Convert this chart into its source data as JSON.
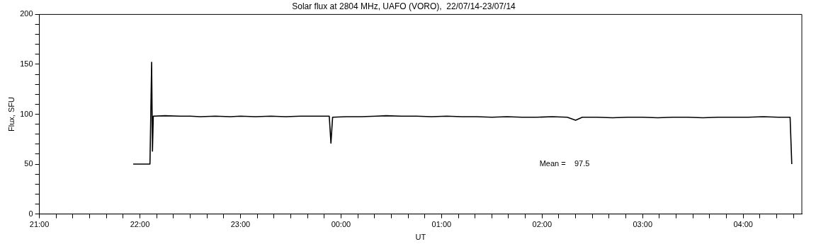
{
  "chart_data": {
    "type": "line",
    "title": "Solar flux at 2804 MHz, UAFO (VORO),  22/07/14-23/07/14",
    "xlabel": "UT",
    "ylabel": "Flux, SFU",
    "x": [
      "--07-22T21:56",
      "--07-22T22:06",
      "--07-22T22:06:30",
      "--07-22T22:07",
      "--07-22T22:07:30",
      "--07-22T22:08",
      "--07-22T22:15",
      "--07-22T22:24",
      "--07-22T22:30",
      "--07-22T22:36",
      "--07-22T22:45",
      "--07-22T22:54",
      "--07-22T23:00",
      "--07-22T23:09",
      "--07-22T23:18",
      "--07-22T23:27",
      "--07-22T23:36",
      "--07-22T23:45",
      "--07-22T23:53",
      "--07-22T23:54",
      "--07-22T23:55",
      "--07-23T00:03",
      "--07-23T00:12",
      "--07-23T00:21",
      "--07-23T00:27",
      "--07-23T00:36",
      "--07-23T00:45",
      "--07-23T00:54",
      "--07-23T01:03",
      "--07-23T01:12",
      "--07-23T01:21",
      "--07-23T01:30",
      "--07-23T01:39",
      "--07-23T01:48",
      "--07-23T01:57",
      "--07-23T02:06",
      "--07-23T02:15",
      "--07-23T02:20",
      "--07-23T02:24",
      "--07-23T02:33",
      "--07-23T02:42",
      "--07-23T02:51",
      "--07-23T03:00",
      "--07-23T03:09",
      "--07-23T03:18",
      "--07-23T03:27",
      "--07-23T03:36",
      "--07-23T03:45",
      "--07-23T03:54",
      "--07-23T04:03",
      "--07-23T04:12",
      "--07-23T04:21",
      "--07-23T04:28",
      "--07-23T04:29"
    ],
    "series": [
      {
        "color": "#000000",
        "values": [
          50,
          50,
          100,
          152,
          63,
          98,
          98.5,
          98,
          98,
          97.5,
          98,
          97.5,
          98,
          97.5,
          98,
          97.5,
          98,
          98,
          98,
          71,
          97,
          97.5,
          97.5,
          98,
          98.5,
          98,
          98,
          97.5,
          98,
          97.5,
          97.5,
          97,
          97.5,
          97,
          97,
          97.5,
          97,
          94,
          97,
          97,
          96.5,
          97,
          97,
          96.5,
          97,
          97,
          96.5,
          97,
          97,
          97,
          97.5,
          97,
          97,
          50
        ]
      }
    ],
    "xlim": [
      "--07-22T21:00",
      "--07-23T04:35"
    ],
    "ylim": [
      0,
      200
    ],
    "xticks": [
      {
        "value": "--07-22T21:00",
        "label": "21:00"
      },
      {
        "value": "--07-22T21:10",
        "label": null
      },
      {
        "value": "--07-22T21:20",
        "label": null
      },
      {
        "value": "--07-22T21:30",
        "label": null
      },
      {
        "value": "--07-22T21:40",
        "label": null
      },
      {
        "value": "--07-22T21:50",
        "label": null
      },
      {
        "value": "--07-22T22:00",
        "label": "22:00"
      },
      {
        "value": "--07-22T22:10",
        "label": null
      },
      {
        "value": "--07-22T22:20",
        "label": null
      },
      {
        "value": "--07-22T22:30",
        "label": null
      },
      {
        "value": "--07-22T22:40",
        "label": null
      },
      {
        "value": "--07-22T22:50",
        "label": null
      },
      {
        "value": "--07-22T23:00",
        "label": "23:00"
      },
      {
        "value": "--07-22T23:10",
        "label": null
      },
      {
        "value": "--07-22T23:20",
        "label": null
      },
      {
        "value": "--07-22T23:30",
        "label": null
      },
      {
        "value": "--07-22T23:40",
        "label": null
      },
      {
        "value": "--07-22T23:50",
        "label": null
      },
      {
        "value": "--07-23T00:00",
        "label": "00:00"
      },
      {
        "value": "--07-23T00:10",
        "label": null
      },
      {
        "value": "--07-23T00:20",
        "label": null
      },
      {
        "value": "--07-23T00:30",
        "label": null
      },
      {
        "value": "--07-23T00:40",
        "label": null
      },
      {
        "value": "--07-23T00:50",
        "label": null
      },
      {
        "value": "--07-23T01:00",
        "label": "01:00"
      },
      {
        "value": "--07-23T01:10",
        "label": null
      },
      {
        "value": "--07-23T01:20",
        "label": null
      },
      {
        "value": "--07-23T01:30",
        "label": null
      },
      {
        "value": "--07-23T01:40",
        "label": null
      },
      {
        "value": "--07-23T01:50",
        "label": null
      },
      {
        "value": "--07-23T02:00",
        "label": "02:00"
      },
      {
        "value": "--07-23T02:10",
        "label": null
      },
      {
        "value": "--07-23T02:20",
        "label": null
      },
      {
        "value": "--07-23T02:30",
        "label": null
      },
      {
        "value": "--07-23T02:40",
        "label": null
      },
      {
        "value": "--07-23T02:50",
        "label": null
      },
      {
        "value": "--07-23T03:00",
        "label": "03:00"
      },
      {
        "value": "--07-23T03:10",
        "label": null
      },
      {
        "value": "--07-23T03:20",
        "label": null
      },
      {
        "value": "--07-23T03:30",
        "label": null
      },
      {
        "value": "--07-23T03:40",
        "label": null
      },
      {
        "value": "--07-23T03:50",
        "label": null
      },
      {
        "value": "--07-23T04:00",
        "label": "04:00"
      },
      {
        "value": "--07-23T04:10",
        "label": null
      },
      {
        "value": "--07-23T04:20",
        "label": null
      },
      {
        "value": "--07-23T04:30",
        "label": null
      }
    ],
    "yticks": [
      0,
      {
        "value": 10,
        "label": null
      },
      {
        "value": 20,
        "label": null
      },
      {
        "value": 30,
        "label": null
      },
      {
        "value": 40,
        "label": null
      },
      50,
      {
        "value": 60,
        "label": null
      },
      {
        "value": 70,
        "label": null
      },
      {
        "value": 80,
        "label": null
      },
      {
        "value": 90,
        "label": null
      },
      100,
      {
        "value": 110,
        "label": null
      },
      {
        "value": 120,
        "label": null
      },
      {
        "value": 130,
        "label": null
      },
      {
        "value": 140,
        "label": null
      },
      150,
      {
        "value": 160,
        "label": null
      },
      {
        "value": 170,
        "label": null
      },
      {
        "value": 180,
        "label": null
      },
      {
        "value": 190,
        "label": null
      },
      200
    ],
    "annotations": [
      "Mean =    97.5"
    ],
    "marker": "none",
    "line_style": "solid"
  }
}
